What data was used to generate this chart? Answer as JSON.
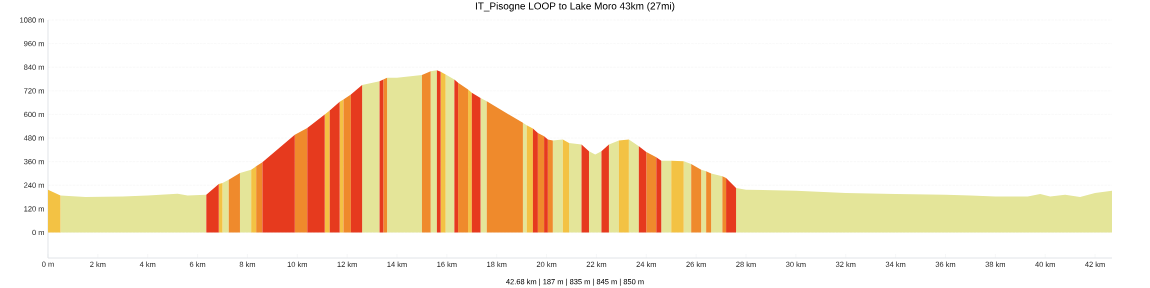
{
  "chart_data": {
    "type": "area",
    "title": "IT_Pisogne LOOP to Lake Moro 43km (27mi)",
    "xlim": [
      0,
      42.68
    ],
    "ylim": [
      -130,
      1080
    ],
    "xticks": [
      {
        "value": 0,
        "label": "0 m"
      },
      {
        "value": 2,
        "label": "2 km"
      },
      {
        "value": 4,
        "label": "4 km"
      },
      {
        "value": 6,
        "label": "6 km"
      },
      {
        "value": 8,
        "label": "8 km"
      },
      {
        "value": 10,
        "label": "10 km"
      },
      {
        "value": 12,
        "label": "12 km"
      },
      {
        "value": 14,
        "label": "14 km"
      },
      {
        "value": 16,
        "label": "16 km"
      },
      {
        "value": 18,
        "label": "18 km"
      },
      {
        "value": 20,
        "label": "20 km"
      },
      {
        "value": 22,
        "label": "22 km"
      },
      {
        "value": 24,
        "label": "24 km"
      },
      {
        "value": 26,
        "label": "26 km"
      },
      {
        "value": 28,
        "label": "28 km"
      },
      {
        "value": 30,
        "label": "30 km"
      },
      {
        "value": 32,
        "label": "32 km"
      },
      {
        "value": 34,
        "label": "34 km"
      },
      {
        "value": 36,
        "label": "36 km"
      },
      {
        "value": 38,
        "label": "38 km"
      },
      {
        "value": 40,
        "label": "40 km"
      },
      {
        "value": 42,
        "label": "42 km"
      }
    ],
    "yticks": [
      {
        "value": 0,
        "label": "0 m"
      },
      {
        "value": 120,
        "label": "120 m"
      },
      {
        "value": 240,
        "label": "240 m"
      },
      {
        "value": 360,
        "label": "360 m"
      },
      {
        "value": 480,
        "label": "480 m"
      },
      {
        "value": 600,
        "label": "600 m"
      },
      {
        "value": 720,
        "label": "720 m"
      },
      {
        "value": 840,
        "label": "840 m"
      },
      {
        "value": 960,
        "label": "960 m"
      },
      {
        "value": 1080,
        "label": "1080 m"
      }
    ],
    "grid": "y",
    "annotations": [
      "42.68 km | 187 m | 835 m | 845 m | 850 m"
    ],
    "series": [
      {
        "color": "#e4e599",
        "x": [
          0.5,
          1.5,
          3,
          4,
          5.2,
          5.6,
          6.35,
          null,
          7.0,
          7.25,
          null,
          7.7,
          8.15,
          null,
          12.6,
          13.3,
          null,
          13.6,
          14,
          15.0,
          null,
          15.35,
          15.6,
          null,
          15.95,
          16.3,
          null,
          17.35,
          17.6,
          null,
          19.05,
          19.2,
          null,
          20.25,
          20.65,
          null,
          20.9,
          21.4,
          null,
          21.7,
          21.95,
          22.2,
          null,
          22.5,
          22.9,
          null,
          23.3,
          23.7,
          null,
          24.6,
          25.0,
          null,
          25.5,
          25.8,
          null,
          26.2,
          26.4,
          null,
          26.6,
          27.05,
          null,
          27.6,
          28,
          30,
          32,
          34,
          36,
          37,
          38,
          39.3,
          39.8,
          40.2,
          40.8,
          41.4,
          42,
          42.68
        ],
        "values": [
          188,
          180,
          183,
          188,
          197,
          188,
          192,
          null,
          251,
          268,
          null,
          302,
          319,
          null,
          749,
          769,
          null,
          786,
          786,
          800,
          null,
          820,
          824,
          null,
          803,
          778,
          null,
          684,
          667,
          null,
          557,
          545,
          null,
          467,
          472,
          null,
          455,
          447,
          null,
          413,
          396,
          413,
          null,
          447,
          467,
          null,
          472,
          438,
          null,
          365,
          365,
          null,
          362,
          348,
          null,
          319,
          311,
          null,
          299,
          285,
          null,
          226,
          217,
          212,
          200,
          195,
          192,
          188,
          183,
          183,
          195,
          183,
          192,
          180,
          200,
          212
        ]
      },
      {
        "color": "#f3c244",
        "x": [
          0,
          0.5,
          null,
          6.85,
          7.0,
          null,
          8.15,
          8.35,
          null,
          11.1,
          11.3,
          null,
          11.7,
          11.85,
          null,
          15.75,
          15.95,
          null,
          16.85,
          17.0,
          null,
          19.2,
          19.45,
          null,
          20.65,
          20.9,
          null,
          22.9,
          23.3,
          null,
          25.0,
          25.5
        ],
        "values": [
          217,
          188,
          null,
          246,
          251,
          null,
          319,
          336,
          null,
          599,
          620,
          null,
          664,
          676,
          null,
          817,
          803,
          null,
          727,
          710,
          null,
          545,
          528,
          null,
          472,
          455,
          null,
          467,
          472,
          null,
          365,
          362
        ]
      },
      {
        "color": "#ef8a2c",
        "x": [
          7.25,
          7.7,
          null,
          8.35,
          8.6,
          null,
          9.9,
          10.4,
          null,
          11.85,
          12.15,
          null,
          13.45,
          13.6,
          null,
          15.0,
          15.35,
          null,
          16.45,
          16.85,
          null,
          17.6,
          19.05,
          null,
          19.65,
          19.9,
          null,
          20.05,
          20.25,
          null,
          24.0,
          24.4,
          null,
          25.8,
          26.2,
          null,
          26.4,
          26.6,
          null,
          27.05,
          27.2
        ],
        "values": [
          268,
          302,
          null,
          336,
          357,
          null,
          497,
          531,
          null,
          676,
          701,
          null,
          778,
          786,
          null,
          800,
          820,
          null,
          761,
          727,
          null,
          667,
          557,
          null,
          506,
          489,
          null,
          472,
          467,
          null,
          409,
          382,
          null,
          348,
          319,
          null,
          311,
          299,
          null,
          285,
          277
        ]
      },
      {
        "color": "#e63a1e",
        "x": [
          6.35,
          6.85,
          null,
          8.6,
          9.9,
          null,
          10.4,
          11.1,
          null,
          11.3,
          11.7,
          null,
          12.15,
          12.6,
          null,
          13.3,
          13.45,
          null,
          15.6,
          15.75,
          null,
          16.3,
          16.45,
          null,
          17.0,
          17.35,
          null,
          19.45,
          19.65,
          null,
          19.9,
          20.05,
          null,
          21.4,
          21.7,
          null,
          22.2,
          22.5,
          null,
          23.7,
          24.0,
          null,
          24.4,
          24.6,
          null,
          27.2,
          27.6
        ],
        "values": [
          192,
          246,
          null,
          357,
          497,
          null,
          531,
          599,
          null,
          620,
          664,
          null,
          701,
          749,
          null,
          769,
          778,
          null,
          824,
          817,
          null,
          778,
          761,
          null,
          710,
          684,
          null,
          528,
          506,
          null,
          489,
          472,
          null,
          447,
          413,
          null,
          413,
          447,
          null,
          438,
          409,
          null,
          382,
          365,
          null,
          277,
          226
        ]
      }
    ]
  }
}
